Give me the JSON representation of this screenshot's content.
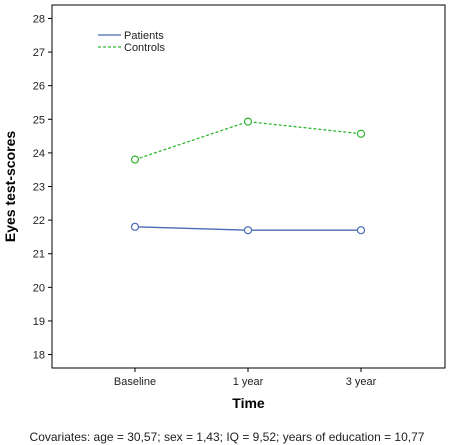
{
  "chart_data": {
    "type": "line",
    "categories": [
      "Baseline",
      "1 year",
      "3 year"
    ],
    "series": [
      {
        "name": "Patients",
        "values": [
          21.8,
          21.7,
          21.7
        ],
        "color": "#4a6bb5",
        "style": "solid"
      },
      {
        "name": "Controls",
        "values": [
          23.8,
          24.93,
          24.57
        ],
        "color": "#33b533",
        "style": "dashed"
      }
    ],
    "xlabel": "Time",
    "ylabel": "Eyes test-scores",
    "ylim": [
      17.6,
      28.4
    ],
    "yticks": [
      "18",
      "19",
      "20",
      "21",
      "22",
      "23",
      "24",
      "25",
      "26",
      "27",
      "28"
    ],
    "legend": "top-left",
    "grid": false,
    "footnote": "Covariates: age = 30,57; sex = 1,43; IQ = 9,52; years of education = 10,77"
  }
}
